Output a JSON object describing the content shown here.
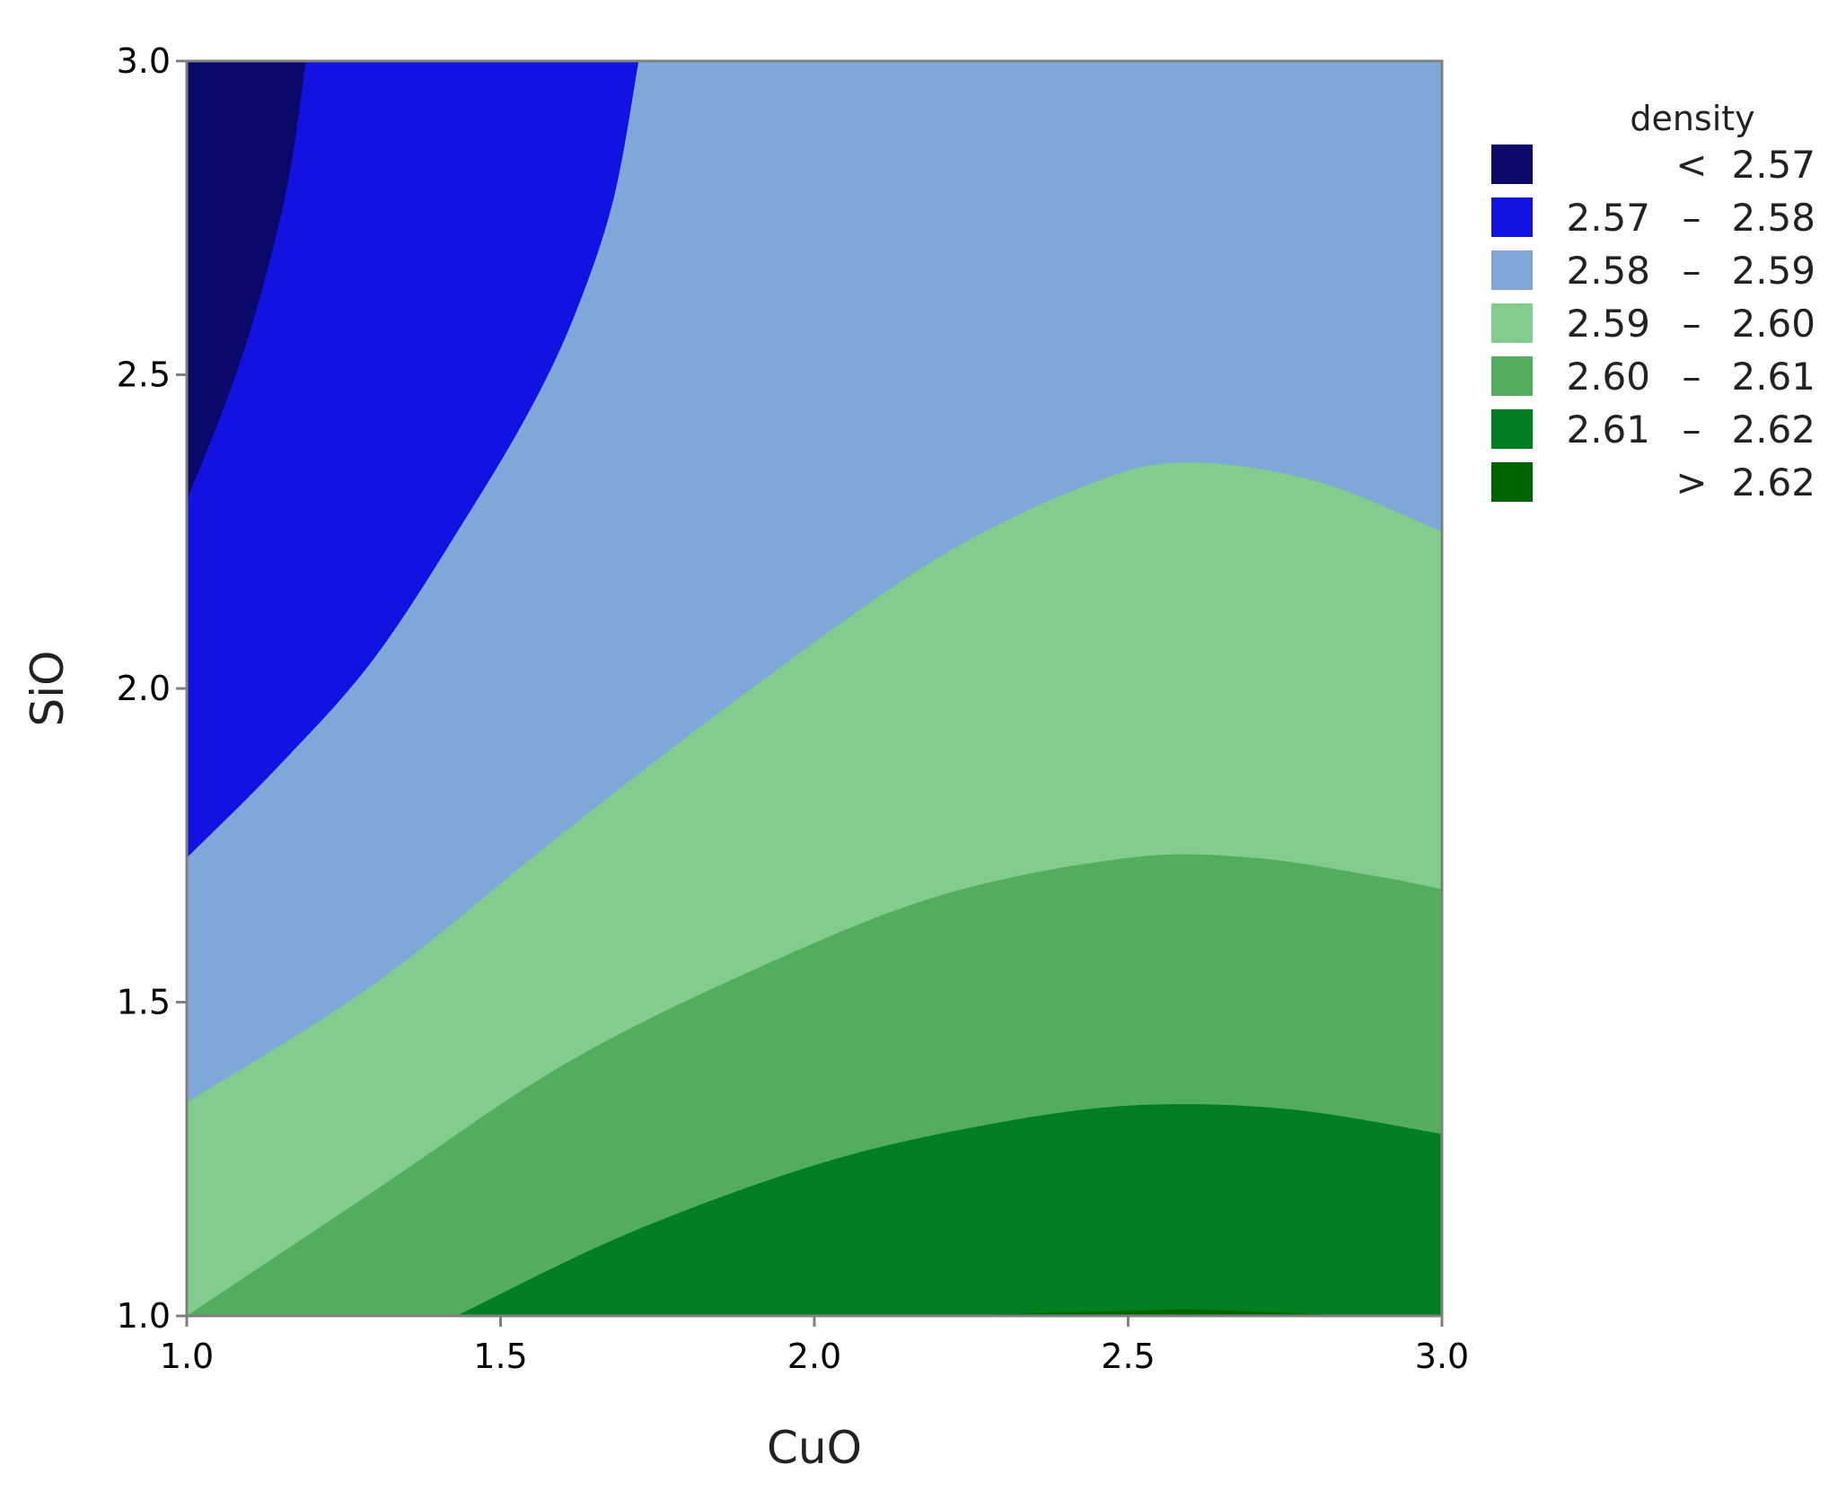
{
  "chart_data": {
    "type": "contour",
    "xlabel": "CuO",
    "ylabel": "SiO",
    "xlim": [
      1.0,
      3.0
    ],
    "ylim": [
      1.0,
      3.0
    ],
    "x_ticks": [
      "1.0",
      "1.5",
      "2.0",
      "2.5",
      "3.0"
    ],
    "y_ticks": [
      "1.0",
      "1.5",
      "2.0",
      "2.5",
      "3.0"
    ],
    "grid": false,
    "legend_position": "right",
    "legend": {
      "title": "density",
      "entries": [
        {
          "lo": "",
          "sep": "<",
          "hi": "2.57",
          "color": "#0a0868"
        },
        {
          "lo": "2.57",
          "sep": "–",
          "hi": "2.58",
          "color": "#1212e2"
        },
        {
          "lo": "2.58",
          "sep": "–",
          "hi": "2.59",
          "color": "#7fa8d8"
        },
        {
          "lo": "2.59",
          "sep": "–",
          "hi": "2.60",
          "color": "#82cd8e"
        },
        {
          "lo": "2.60",
          "sep": "–",
          "hi": "2.61",
          "color": "#52ae5c"
        },
        {
          "lo": "2.61",
          "sep": "–",
          "hi": "2.62",
          "color": "#007f22"
        },
        {
          "lo": "",
          "sep": ">",
          "hi": "2.62",
          "color": "#006400"
        }
      ]
    },
    "contour_boundaries": [
      {
        "level": 2.57,
        "below_color": "#0a0868",
        "points": [
          [
            1.0,
            2.3
          ],
          [
            1.06,
            2.45
          ],
          [
            1.11,
            2.6
          ],
          [
            1.16,
            2.8
          ],
          [
            1.19,
            3.0
          ]
        ]
      },
      {
        "level": 2.58,
        "below_color": "#1212e2",
        "points": [
          [
            1.0,
            1.73
          ],
          [
            1.15,
            1.88
          ],
          [
            1.3,
            2.05
          ],
          [
            1.45,
            2.28
          ],
          [
            1.55,
            2.45
          ],
          [
            1.62,
            2.6
          ],
          [
            1.68,
            2.78
          ],
          [
            1.72,
            3.0
          ]
        ]
      },
      {
        "level": 2.59,
        "below_color": "#7fa8d8",
        "points": [
          [
            1.0,
            1.34
          ],
          [
            1.3,
            1.53
          ],
          [
            1.6,
            1.77
          ],
          [
            1.9,
            2.0
          ],
          [
            2.2,
            2.21
          ],
          [
            2.45,
            2.33
          ],
          [
            2.6,
            2.36
          ],
          [
            2.8,
            2.33
          ],
          [
            3.0,
            2.25
          ]
        ]
      },
      {
        "level": 2.6,
        "below_color": "#82cd8e",
        "points": [
          [
            1.0,
            1.0
          ],
          [
            1.3,
            1.2
          ],
          [
            1.6,
            1.4
          ],
          [
            1.9,
            1.55
          ],
          [
            2.2,
            1.67
          ],
          [
            2.5,
            1.73
          ],
          [
            2.7,
            1.73
          ],
          [
            2.9,
            1.7
          ],
          [
            3.0,
            1.68
          ]
        ]
      },
      {
        "level": 2.61,
        "below_color": "#52ae5c",
        "points": [
          [
            1.43,
            1.0
          ],
          [
            1.7,
            1.13
          ],
          [
            2.0,
            1.24
          ],
          [
            2.25,
            1.3
          ],
          [
            2.5,
            1.335
          ],
          [
            2.75,
            1.33
          ],
          [
            3.0,
            1.29
          ]
        ]
      },
      {
        "level": 2.62,
        "below_color": "#007f22",
        "points": [
          [
            2.2,
            1.0
          ],
          [
            2.5,
            1.008
          ],
          [
            2.6,
            1.01
          ],
          [
            2.75,
            1.005
          ],
          [
            2.85,
            1.0
          ]
        ]
      }
    ]
  }
}
